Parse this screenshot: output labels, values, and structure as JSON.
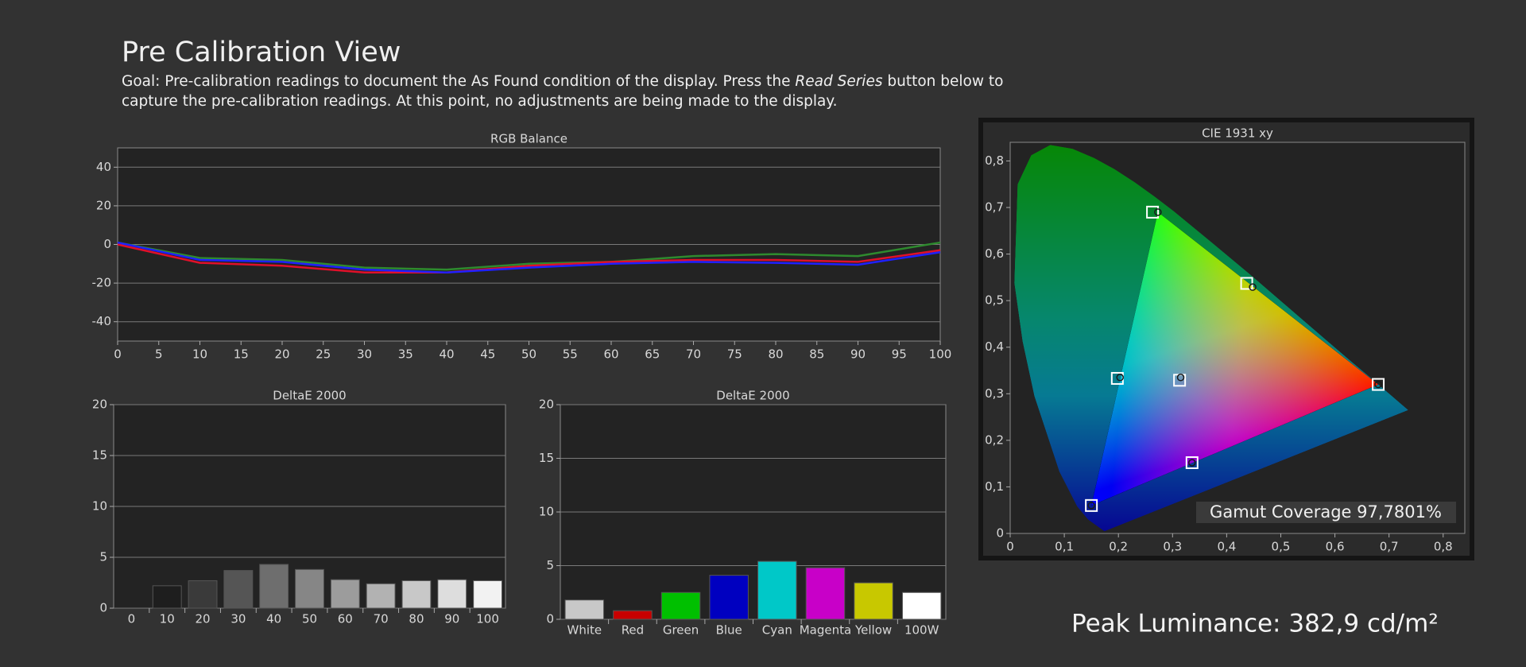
{
  "header": {
    "title": "Pre Calibration View",
    "goal": [
      "Goal: Pre-calibration readings to document the As Found condition of the display. Press the ",
      "Read Series",
      " button below to capture the pre-calibration readings. At this point, no adjustments are being made to the display."
    ]
  },
  "chart_data": [
    {
      "type": "line",
      "title": "RGB Balance",
      "x": [
        0,
        10,
        20,
        30,
        40,
        50,
        60,
        70,
        80,
        90,
        100
      ],
      "series": [
        {
          "color": "#2e8a2e",
          "values": [
            1,
            -7,
            -8,
            -12,
            -13,
            -10,
            -9,
            -6,
            -5,
            -6,
            1
          ]
        },
        {
          "color": "#e0102a",
          "values": [
            0,
            -9.5,
            -11,
            -14.5,
            -14.5,
            -11,
            -9,
            -8,
            -8,
            -9,
            -3
          ]
        },
        {
          "color": "#2020ff",
          "values": [
            1,
            -8,
            -9,
            -13,
            -14.5,
            -12,
            -10,
            -9,
            -9.5,
            -10.5,
            -4
          ]
        }
      ],
      "xlim": [
        0,
        100
      ],
      "xticks": [
        0,
        5,
        10,
        15,
        20,
        25,
        30,
        35,
        40,
        45,
        50,
        55,
        60,
        65,
        70,
        75,
        80,
        85,
        90,
        95,
        100
      ],
      "ylim": [
        -50,
        50
      ],
      "yticks": [
        -40,
        -20,
        0,
        20,
        40
      ],
      "grid": true
    },
    {
      "type": "bar",
      "title": "DeltaE 2000",
      "categories": [
        "0",
        "10",
        "20",
        "30",
        "40",
        "50",
        "60",
        "70",
        "80",
        "90",
        "100"
      ],
      "values": [
        0,
        2.2,
        2.7,
        3.7,
        4.3,
        3.8,
        2.8,
        2.4,
        2.7,
        2.8,
        2.7
      ],
      "colors": [
        "#111111",
        "#1e1e1e",
        "#3a3a3a",
        "#555555",
        "#6e6e6e",
        "#868686",
        "#9c9c9c",
        "#b2b2b2",
        "#c8c8c8",
        "#dddddd",
        "#f2f2f2"
      ],
      "ylim": [
        0,
        20
      ],
      "yticks": [
        0,
        5,
        10,
        15,
        20
      ],
      "grid": true
    },
    {
      "type": "bar",
      "title": "DeltaE 2000",
      "categories": [
        "White",
        "Red",
        "Green",
        "Blue",
        "Cyan",
        "Magenta",
        "Yellow",
        "100W"
      ],
      "values": [
        1.8,
        0.8,
        2.5,
        4.1,
        5.4,
        4.8,
        3.4,
        2.5
      ],
      "colors": [
        "#c8c8c8",
        "#c80000",
        "#00c000",
        "#0000c0",
        "#00c8c8",
        "#c800c8",
        "#c8c800",
        "#ffffff"
      ],
      "ylim": [
        0,
        20
      ],
      "yticks": [
        0,
        5,
        10,
        15,
        20
      ],
      "grid": true
    },
    {
      "type": "scatter",
      "title": "CIE 1931 xy",
      "series": [
        {
          "marker": "square",
          "color": "#ffffff",
          "x": [
            0.68,
            0.263,
            0.15,
            0.198,
            0.336,
            0.437,
            0.313
          ],
          "y": [
            0.32,
            0.69,
            0.06,
            0.333,
            0.152,
            0.537,
            0.329
          ]
        },
        {
          "marker": "circle",
          "color": "#1a1a1a",
          "x": [
            0.68,
            0.273,
            0.15,
            0.203,
            0.336,
            0.448,
            0.315
          ],
          "y": [
            0.32,
            0.69,
            0.06,
            0.335,
            0.152,
            0.529,
            0.335
          ]
        }
      ],
      "xlim": [
        0,
        0.84
      ],
      "ylim": [
        0,
        0.84
      ],
      "xticks": [
        0,
        {
          "value": 0.1,
          "label": "0,1"
        },
        {
          "value": 0.2,
          "label": "0,2"
        },
        {
          "value": 0.3,
          "label": "0,3"
        },
        {
          "value": 0.4,
          "label": "0,4"
        },
        {
          "value": 0.5,
          "label": "0,5"
        },
        {
          "value": 0.6,
          "label": "0,6"
        },
        {
          "value": 0.7,
          "label": "0,7"
        },
        {
          "value": 0.8,
          "label": "0,8"
        }
      ],
      "yticks": [
        0,
        {
          "value": 0.1,
          "label": "0,1"
        },
        {
          "value": 0.2,
          "label": "0,2"
        },
        {
          "value": 0.3,
          "label": "0,3"
        },
        {
          "value": 0.4,
          "label": "0,4"
        },
        {
          "value": 0.5,
          "label": "0,5"
        },
        {
          "value": 0.6,
          "label": "0,6"
        },
        {
          "value": 0.7,
          "label": "0,7"
        },
        {
          "value": 0.8,
          "label": "0,8"
        }
      ],
      "grid": false,
      "annotation": "Gamut Coverage 97,7801%"
    }
  ],
  "footer": {
    "peak_luminance": "Peak Luminance: 382,9 cd/m²"
  }
}
